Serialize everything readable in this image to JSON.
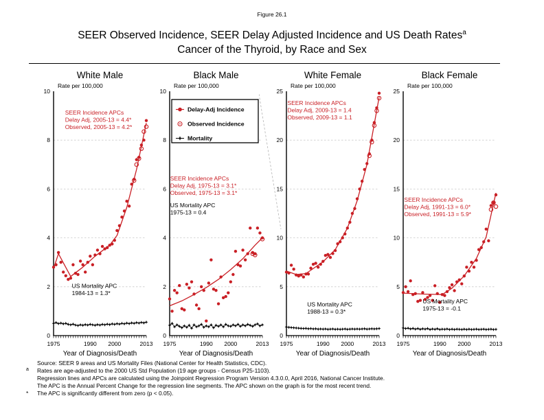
{
  "figure": {
    "label": "Figure 26.1",
    "title_line1": "SEER Observed Incidence, SEER Delay Adjusted Incidence and US Death Rates",
    "title_superscript": "a",
    "title_line2": "Cancer of the Thyroid, by Race and Sex"
  },
  "colors": {
    "incidence": "#c91f25",
    "mortality": "#000000",
    "gridline": "#c9c9c9",
    "scale_break_line": "#b3b3b3"
  },
  "legend": {
    "items": [
      {
        "label": "Delay-Adj Incidence",
        "marker": "filled-circle-line",
        "color": "#c91f25"
      },
      {
        "label": "Observed Incidence",
        "marker": "open-circle-dot",
        "color": "#c91f25"
      },
      {
        "label": "Mortality",
        "marker": "star-line",
        "color": "#000000"
      }
    ]
  },
  "axes": {
    "y_axis_title": "Rate per 100,000",
    "x_label": "Year of Diagnosis/Death",
    "x_range": [
      1975,
      2013
    ],
    "x_tick_labels": [
      1975,
      1990,
      2000,
      2013
    ]
  },
  "chart_data": [
    {
      "type": "scatter",
      "title": "White Male",
      "ylim": [
        0,
        10
      ],
      "y_ticks": [
        0,
        2,
        4,
        6,
        8,
        10
      ],
      "x_start": 1975,
      "series": [
        {
          "name": "Delay-Adj Incidence",
          "values": [
            2.8,
            2.9,
            3.4,
            3.0,
            2.6,
            2.45,
            2.3,
            2.35,
            2.9,
            2.55,
            2.5,
            3.05,
            2.9,
            2.6,
            3.0,
            3.25,
            2.9,
            3.3,
            3.5,
            3.35,
            3.65,
            3.55,
            3.6,
            3.7,
            3.75,
            3.9,
            4.3,
            4.5,
            4.85,
            5.1,
            5.5,
            5.3,
            6.2,
            6.4,
            7.2,
            7.3,
            7.8,
            8.0,
            8.8
          ]
        },
        {
          "name": "Observed Incidence",
          "points": [
            [
              2008,
              6.35
            ],
            [
              2009,
              7.0
            ],
            [
              2010,
              7.25
            ],
            [
              2011,
              7.65
            ],
            [
              2012,
              8.35
            ],
            [
              2013,
              8.55
            ]
          ]
        },
        {
          "name": "Mortality",
          "values": [
            0.5,
            0.53,
            0.49,
            0.51,
            0.48,
            0.5,
            0.46,
            0.44,
            0.47,
            0.43,
            0.41,
            0.44,
            0.42,
            0.45,
            0.43,
            0.46,
            0.44,
            0.42,
            0.45,
            0.43,
            0.46,
            0.44,
            0.47,
            0.45,
            0.48,
            0.46,
            0.49,
            0.47,
            0.5,
            0.48,
            0.51,
            0.49,
            0.52,
            0.5,
            0.53,
            0.51,
            0.54,
            0.52,
            0.55
          ]
        },
        {
          "name": "Trend",
          "points": [
            [
              1975,
              2.75
            ],
            [
              1977,
              3.35
            ],
            [
              1982,
              2.42
            ],
            [
              1987,
              2.8
            ],
            [
              1992,
              3.25
            ],
            [
              1998,
              3.7
            ],
            [
              2001,
              4.1
            ],
            [
              2005,
              5.25
            ],
            [
              2009,
              6.8
            ],
            [
              2013,
              8.7
            ]
          ]
        }
      ],
      "annotations": {
        "incidence": {
          "lines": [
            "SEER Incidence APCs",
            "Delay Adj, 2005-13 = 4.4*",
            "Observed, 2005-13 = 4.2*"
          ],
          "x": 1979.7,
          "y": 9.05
        },
        "mortality": {
          "lines": [
            "US Mortality APC",
            "1984-13 = 1.3*"
          ],
          "x": 1982.5,
          "y": 1.95
        }
      }
    },
    {
      "type": "scatter",
      "title": "Black Male",
      "ylim": [
        0,
        10
      ],
      "y_ticks": [
        0,
        2,
        4,
        6,
        8,
        10
      ],
      "x_start": 1975,
      "series": [
        {
          "name": "Delay-Adj Incidence",
          "values": [
            1.5,
            1.0,
            1.85,
            1.75,
            2.05,
            1.1,
            1.05,
            2.1,
            1.95,
            2.2,
            1.7,
            1.25,
            1.1,
            2.0,
            1.85,
            0.6,
            2.15,
            3.1,
            1.9,
            1.85,
            1.3,
            2.4,
            1.55,
            1.6,
            1.75,
            2.2,
            2.5,
            3.45,
            2.9,
            2.85,
            3.5,
            3.1,
            3.35,
            4.4,
            3.4,
            3.35,
            4.4,
            4.2,
            4.0
          ]
        },
        {
          "name": "Observed Incidence",
          "points": [
            [
              2009,
              3.35
            ],
            [
              2010,
              3.3
            ],
            [
              2013,
              3.95
            ]
          ]
        },
        {
          "name": "Mortality",
          "values": [
            0.42,
            0.5,
            0.36,
            0.44,
            0.38,
            0.32,
            0.4,
            0.34,
            0.42,
            0.3,
            0.44,
            0.36,
            0.4,
            0.46,
            0.34,
            0.4,
            0.36,
            0.44,
            0.32,
            0.42,
            0.38,
            0.44,
            0.36,
            0.46,
            0.4,
            0.38,
            0.44,
            0.4,
            0.46,
            0.38,
            0.44,
            0.4,
            0.46,
            0.42,
            0.38,
            0.44,
            0.48,
            0.4,
            0.44
          ]
        },
        {
          "name": "Trend",
          "points": [
            [
              1975,
              1.22
            ],
            [
              1980,
              1.42
            ],
            [
              1985,
              1.68
            ],
            [
              1990,
              1.97
            ],
            [
              1995,
              2.3
            ],
            [
              2000,
              2.7
            ],
            [
              2005,
              3.15
            ],
            [
              2010,
              3.7
            ],
            [
              2013,
              4.0
            ]
          ]
        }
      ],
      "annotations": {
        "incidence": {
          "lines": [
            "SEER Incidence APCs",
            "Delay Adj, 1975-13 = 3.1*",
            "Observed, 1975-13 = 3.1*"
          ],
          "x": 1975.2,
          "y": 6.35
        },
        "mortality": {
          "lines": [
            "US Mortality APC",
            "1975-13 = 0.4"
          ],
          "x": 1975.2,
          "y": 5.25
        }
      },
      "has_legend": true
    },
    {
      "type": "scatter",
      "title": "White Female",
      "ylim": [
        0,
        25
      ],
      "y_ticks": [
        0,
        5,
        10,
        15,
        20,
        25
      ],
      "x_start": 1975,
      "series": [
        {
          "name": "Delay-Adj Incidence",
          "values": [
            6.5,
            6.4,
            7.2,
            6.8,
            6.2,
            6.1,
            6.2,
            6.0,
            6.3,
            6.3,
            6.9,
            7.3,
            7.4,
            7.0,
            7.3,
            7.6,
            8.2,
            8.3,
            8.0,
            8.4,
            8.7,
            9.4,
            9.6,
            10.0,
            10.4,
            11.0,
            11.6,
            12.5,
            13.0,
            14.0,
            15.0,
            15.8,
            17.0,
            17.6,
            18.6,
            20.0,
            21.8,
            23.3,
            24.8
          ]
        },
        {
          "name": "Observed Incidence",
          "points": [
            [
              2009,
              18.4
            ],
            [
              2010,
              19.8
            ],
            [
              2011,
              21.5
            ],
            [
              2012,
              23.0
            ],
            [
              2013,
              24.3
            ]
          ]
        },
        {
          "name": "Mortality",
          "values": [
            0.88,
            0.84,
            0.82,
            0.8,
            0.78,
            0.76,
            0.74,
            0.72,
            0.74,
            0.7,
            0.72,
            0.68,
            0.7,
            0.66,
            0.68,
            0.66,
            0.68,
            0.64,
            0.66,
            0.68,
            0.64,
            0.66,
            0.64,
            0.66,
            0.68,
            0.64,
            0.66,
            0.68,
            0.66,
            0.68,
            0.66,
            0.68,
            0.7,
            0.66,
            0.68,
            0.7,
            0.68,
            0.7,
            0.72
          ]
        },
        {
          "name": "Trend",
          "points": [
            [
              1975,
              6.6
            ],
            [
              1979,
              6.25
            ],
            [
              1983,
              6.35
            ],
            [
              1990,
              7.55
            ],
            [
              1995,
              8.8
            ],
            [
              2000,
              11.0
            ],
            [
              2004,
              13.8
            ],
            [
              2008,
              17.5
            ],
            [
              2013,
              24.4
            ]
          ]
        }
      ],
      "annotations": {
        "incidence": {
          "lines": [
            "SEER Incidence APCs",
            "Delay Adj, 2009-13 = 1.4",
            "Observed, 2009-13 = 1.1"
          ],
          "x": 1975.4,
          "y": 23.6
        },
        "mortality": {
          "lines": [
            "US Mortality APC",
            "1988-13 = 0.3*"
          ],
          "x": 1983.5,
          "y": 3.0
        }
      },
      "has_scale_break_line": true
    },
    {
      "type": "scatter",
      "title": "Black Female",
      "ylim": [
        0,
        25
      ],
      "y_ticks": [
        0,
        5,
        10,
        15,
        20,
        25
      ],
      "x_start": 1975,
      "series": [
        {
          "name": "Delay-Adj Incidence",
          "values": [
            4.4,
            5.0,
            4.5,
            5.6,
            4.2,
            4.3,
            3.5,
            3.6,
            4.4,
            3.7,
            3.9,
            4.1,
            3.6,
            5.1,
            4.3,
            3.4,
            4.2,
            4.1,
            4.5,
            4.9,
            5.2,
            4.6,
            5.5,
            5.7,
            5.3,
            6.1,
            7.0,
            6.6,
            7.5,
            7.0,
            7.7,
            8.8,
            9.0,
            9.6,
            10.9,
            9.7,
            13.3,
            13.6,
            14.4
          ]
        },
        {
          "name": "Observed Incidence",
          "points": [
            [
              2011,
              12.9
            ],
            [
              2012,
              13.6
            ],
            [
              2013,
              13.2
            ]
          ]
        },
        {
          "name": "Mortality",
          "values": [
            0.78,
            0.72,
            0.76,
            0.68,
            0.74,
            0.66,
            0.72,
            0.64,
            0.7,
            0.66,
            0.72,
            0.62,
            0.68,
            0.64,
            0.7,
            0.62,
            0.66,
            0.64,
            0.68,
            0.62,
            0.66,
            0.62,
            0.66,
            0.64,
            0.62,
            0.66,
            0.62,
            0.66,
            0.62,
            0.64,
            0.66,
            0.62,
            0.64,
            0.66,
            0.62,
            0.64,
            0.66,
            0.62,
            0.64
          ]
        },
        {
          "name": "Trend",
          "points": [
            [
              1975,
              4.35
            ],
            [
              1983,
              4.25
            ],
            [
              1991,
              4.2
            ],
            [
              1995,
              4.85
            ],
            [
              2000,
              6.1
            ],
            [
              2005,
              7.9
            ],
            [
              2009,
              10.1
            ],
            [
              2013,
              14.6
            ]
          ]
        }
      ],
      "annotations": {
        "incidence": {
          "lines": [
            "SEER Incidence APCs",
            "Delay Adj, 1991-13 = 6.0*",
            "Observed, 1991-13 = 5.9*"
          ],
          "x": 1975.4,
          "y": 13.7
        },
        "mortality": {
          "lines": [
            "US Mortality APC",
            "1975-13 = -0.1"
          ],
          "x": 1983.0,
          "y": 3.3
        }
      }
    }
  ],
  "footnotes": [
    {
      "marker": "",
      "text": "Source: SEER 9 areas and US Mortality Files (National Center for Health Statistics, CDC)."
    },
    {
      "marker": "a",
      "text": "Rates are age-adjusted to the 2000 US Std Population (19 age groups - Census P25-1103)."
    },
    {
      "marker": "",
      "text": "Regression lines and APCs are calculated using the Joinpoint Regression Program Version 4.3.0.0, April 2016, National Cancer Institute."
    },
    {
      "marker": "",
      "text": "The APC is the Annual Percent Change for the regression line segments. The APC shown on the graph is for the most recent trend."
    },
    {
      "marker": "*",
      "text": "The APC is significantly different from zero (p < 0.05)."
    }
  ]
}
